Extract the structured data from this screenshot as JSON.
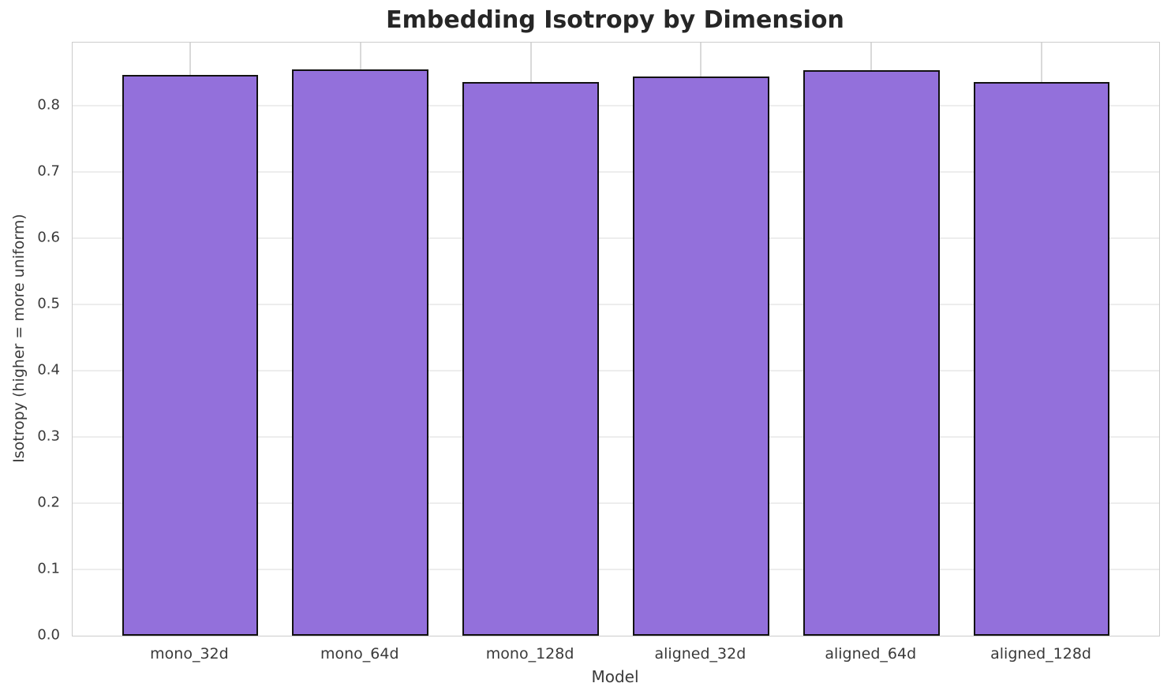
{
  "chart_data": {
    "type": "bar",
    "title": "Embedding Isotropy by Dimension",
    "xlabel": "Model",
    "ylabel": "Isotropy (higher = more uniform)",
    "categories": [
      "mono_32d",
      "mono_64d",
      "mono_128d",
      "aligned_32d",
      "aligned_64d",
      "aligned_128d"
    ],
    "values": [
      0.846,
      0.855,
      0.836,
      0.844,
      0.853,
      0.835
    ],
    "yticks": [
      0.0,
      0.1,
      0.2,
      0.3,
      0.4,
      0.5,
      0.6,
      0.7,
      0.8
    ],
    "ytick_labels": [
      "0.0",
      "0.1",
      "0.2",
      "0.3",
      "0.4",
      "0.5",
      "0.6",
      "0.7",
      "0.8"
    ],
    "ylim": [
      0,
      0.895
    ],
    "xlim": [
      -0.69,
      5.69
    ],
    "bar_width": 0.8,
    "grid": true,
    "legend_position": "none",
    "colors": {
      "bar_fill": "#9370DB",
      "bar_edge": "#111111",
      "h_grid": "#ededed",
      "v_grid": "#d9d9d9",
      "spine": "#cccccc",
      "title_text": "#262626",
      "label_text": "#3a3a3a",
      "background": "#ffffff"
    }
  }
}
